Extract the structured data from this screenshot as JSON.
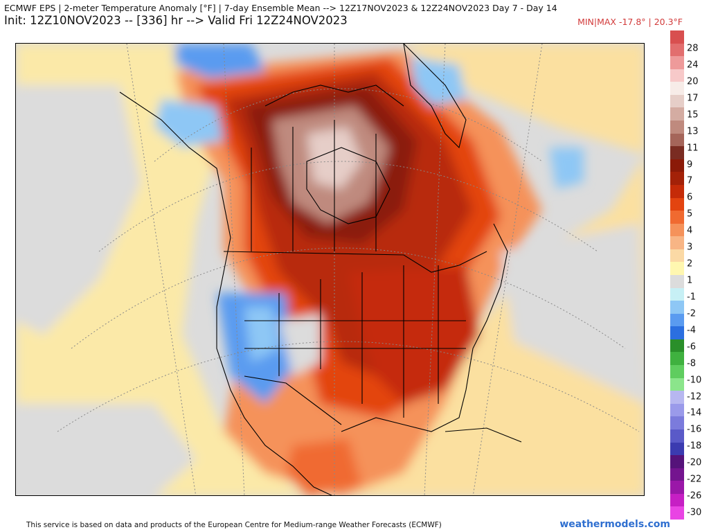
{
  "header": {
    "title": "ECMWF EPS | 2-meter Temperature Anomaly [°F] | 7-day Ensemble Mean --> 12Z17NOV2023 & 12Z24NOV2023  Day 7 - Day 14",
    "subtitle": "Init: 12Z10NOV2023 -- [336] hr --> Valid Fri 12Z24NOV2023",
    "minmax": "MIN|MAX -17.8° | 20.3°F"
  },
  "legend": {
    "labels": [
      "28",
      "24",
      "20",
      "17",
      "15",
      "13",
      "11",
      "9",
      "7",
      "6",
      "5",
      "4",
      "3",
      "2",
      "1",
      "-1",
      "-2",
      "-4",
      "-6",
      "-8",
      "-10",
      "-12",
      "-14",
      "-16",
      "-18",
      "-20",
      "-22",
      "-26",
      "-30"
    ],
    "colors": [
      "#d84f4f",
      "#e26e6e",
      "#ee9a9a",
      "#f7c9c9",
      "#f7ece8",
      "#e6cec8",
      "#d4aca2",
      "#bf8a7e",
      "#a5655a",
      "#7a2c22",
      "#8b1a08",
      "#a32108",
      "#c52b08",
      "#e34410",
      "#f06a30",
      "#f5925a",
      "#f8b585",
      "#fbd9a5",
      "#fff7b0",
      "#dcdcdc",
      "#c7f0f5",
      "#8ec7f5",
      "#5a9bf0",
      "#2b6fe0",
      "#2a8f2a",
      "#3fb13f",
      "#5fcd5f",
      "#8be58b",
      "#b7b7f0",
      "#9a9aea",
      "#7b7bdc",
      "#5a5ac8",
      "#3b3bb0",
      "#55137a",
      "#74148f",
      "#9a17a8",
      "#c61fc4",
      "#e944e4"
    ]
  },
  "footer": {
    "attribution": "This service is based on data and products of the European Centre for Medium-range Weather Forecasts (ECMWF)",
    "brand": "weathermodels.com"
  }
}
